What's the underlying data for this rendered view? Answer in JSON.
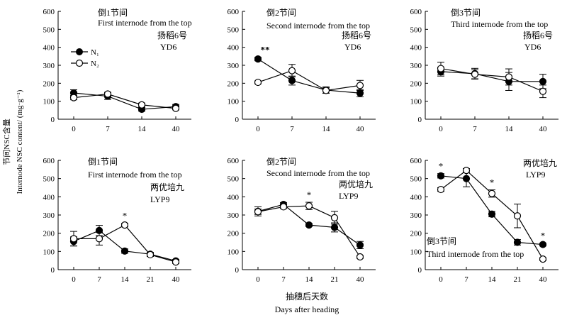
{
  "figure": {
    "ylabel_cn": "节间NSC含量",
    "ylabel_en": "Internode NSC content/ (mg·g⁻¹)",
    "xlabel_cn": "抽穗后天数",
    "xlabel_en": "Days after heading"
  },
  "legend": {
    "n1": "N₁",
    "n2": "N₂"
  },
  "colors": {
    "line": "#000000",
    "n1_fill": "#000000",
    "n2_fill": "#ffffff"
  },
  "chart_data": [
    {
      "type": "line",
      "panel": "top-left",
      "label_cn": "倒1节间",
      "label_en": "First internode from the top",
      "variety_cn": "扬稻6号",
      "variety_en": "YD6",
      "categories": [
        "0",
        "7",
        "14",
        "40"
      ],
      "ylim": [
        0,
        600
      ],
      "yticks": [
        "0",
        "100",
        "200",
        "300",
        "400",
        "500",
        "600"
      ],
      "series": [
        {
          "name": "N₁",
          "values": [
            146,
            128,
            55,
            70
          ],
          "errors": [
            18,
            18,
            10,
            12
          ]
        },
        {
          "name": "N₂",
          "values": [
            120,
            140,
            80,
            60
          ],
          "errors": [
            12,
            10,
            10,
            8
          ]
        }
      ],
      "significance": []
    },
    {
      "type": "line",
      "panel": "top-middle",
      "label_cn": "倒2节间",
      "label_en": "Second internode from the top",
      "variety_cn": "扬稻6号",
      "variety_en": "YD6",
      "categories": [
        "0",
        "7",
        "14",
        "40"
      ],
      "ylim": [
        0,
        600
      ],
      "yticks": [
        "0",
        "100",
        "200",
        "300",
        "400",
        "500",
        "600"
      ],
      "series": [
        {
          "name": "N₁",
          "values": [
            335,
            215,
            162,
            145
          ],
          "errors": [
            10,
            25,
            18,
            20
          ]
        },
        {
          "name": "N₂",
          "values": [
            205,
            270,
            160,
            188
          ],
          "errors": [
            8,
            35,
            15,
            28
          ]
        }
      ],
      "significance": [
        {
          "index": 0,
          "mark": "**"
        }
      ]
    },
    {
      "type": "line",
      "panel": "top-right",
      "label_cn": "倒3节间",
      "label_en": "Third internode from the top",
      "variety_cn": "扬稻6号",
      "variety_en": "YD6",
      "categories": [
        "0",
        "7",
        "14",
        "40"
      ],
      "ylim": [
        0,
        600
      ],
      "yticks": [
        "0",
        "100",
        "200",
        "300",
        "400",
        "500",
        "600"
      ],
      "series": [
        {
          "name": "N₁",
          "values": [
            265,
            253,
            210,
            210
          ],
          "errors": [
            25,
            30,
            50,
            40
          ]
        },
        {
          "name": "N₂",
          "values": [
            282,
            250,
            235,
            155
          ],
          "errors": [
            35,
            25,
            45,
            35
          ]
        }
      ],
      "significance": []
    },
    {
      "type": "line",
      "panel": "bottom-left",
      "label_cn": "倒1节间",
      "label_en": "First internode from the top",
      "variety_cn": "两优培九",
      "variety_en": "LYP9",
      "categories": [
        "0",
        "7",
        "14",
        "21",
        "40"
      ],
      "ylim": [
        0,
        600
      ],
      "yticks": [
        "0",
        "100",
        "200",
        "300",
        "400",
        "500",
        "600"
      ],
      "series": [
        {
          "name": "N₁",
          "values": [
            155,
            215,
            102,
            85,
            48
          ],
          "errors": [
            25,
            28,
            12,
            10,
            8
          ]
        },
        {
          "name": "N₂",
          "values": [
            170,
            170,
            245,
            82,
            42
          ],
          "errors": [
            40,
            35,
            10,
            10,
            8
          ]
        }
      ],
      "significance": [
        {
          "index": 2,
          "mark": "*"
        }
      ]
    },
    {
      "type": "line",
      "panel": "bottom-middle",
      "label_cn": "倒2节间",
      "label_en": "Second internode from the top",
      "variety_cn": "两优培九",
      "variety_en": "LYP9",
      "categories": [
        "0",
        "7",
        "14",
        "21",
        "40"
      ],
      "ylim": [
        0,
        600
      ],
      "yticks": [
        "0",
        "100",
        "200",
        "300",
        "400",
        "500",
        "600"
      ],
      "series": [
        {
          "name": "N₁",
          "values": [
            320,
            358,
            245,
            232,
            135
          ],
          "errors": [
            25,
            10,
            8,
            25,
            20
          ]
        },
        {
          "name": "N₂",
          "values": [
            318,
            345,
            350,
            285,
            70
          ],
          "errors": [
            15,
            10,
            20,
            35,
            8
          ]
        }
      ],
      "significance": [
        {
          "index": 2,
          "mark": "*"
        }
      ]
    },
    {
      "type": "line",
      "panel": "bottom-right",
      "label_cn": "倒3节间",
      "label_en": "Third internode from the top",
      "variety_cn": "两优培九",
      "variety_en": "LYP9",
      "categories": [
        "0",
        "7",
        "14",
        "21",
        "40"
      ],
      "ylim": [
        0,
        600
      ],
      "yticks": [
        "0",
        "100",
        "200",
        "300",
        "400",
        "500",
        "600"
      ],
      "series": [
        {
          "name": "N₁",
          "values": [
            515,
            500,
            305,
            150,
            138
          ],
          "errors": [
            12,
            45,
            15,
            15,
            8
          ]
        },
        {
          "name": "N₂",
          "values": [
            440,
            545,
            418,
            295,
            58
          ],
          "errors": [
            10,
            10,
            20,
            65,
            8
          ]
        }
      ],
      "significance": [
        {
          "index": 0,
          "mark": "*"
        },
        {
          "index": 2,
          "mark": "*"
        },
        {
          "index": 4,
          "mark": "*"
        }
      ]
    }
  ]
}
